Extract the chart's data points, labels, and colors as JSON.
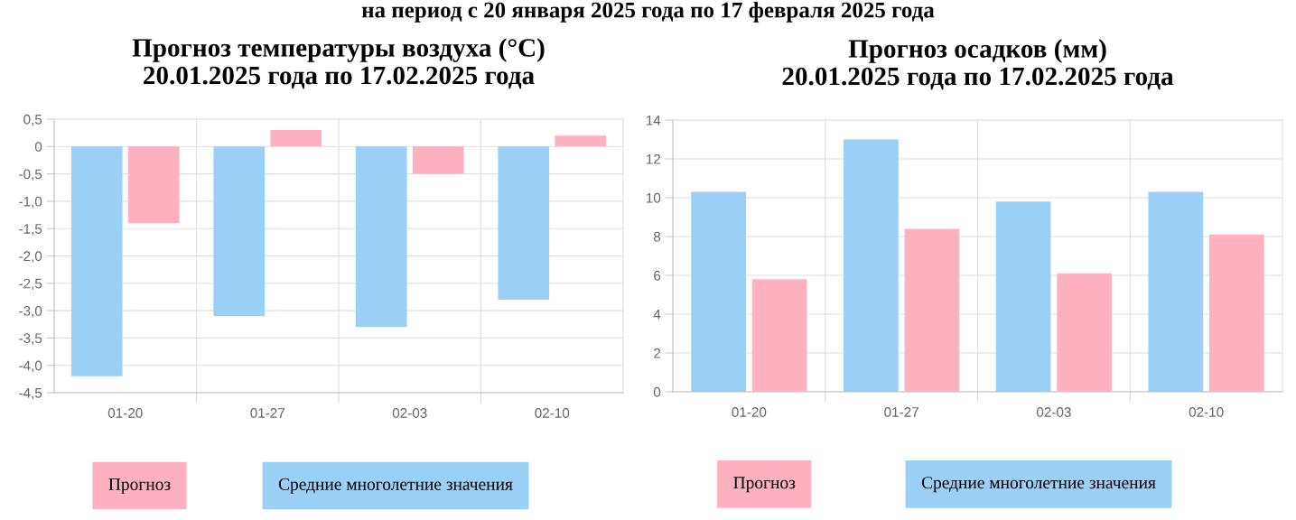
{
  "chart_data": [
    {
      "type": "bar",
      "title": "Прогноз температуры воздуха (°C)\n20.01.2025 года по 17.02.2025 года",
      "annotations": [
        "на период с 20 января 2025 года по 17 февраля 2025 года"
      ],
      "categories": [
        "01-20",
        "01-27",
        "02-03",
        "02-10"
      ],
      "series": [
        {
          "name": "Средние многолетние значения",
          "color": "#9ad0f5",
          "values": [
            -4.2,
            -3.1,
            -3.3,
            -2.8
          ]
        },
        {
          "name": "Прогноз",
          "color": "#ffb1c1",
          "values": [
            -1.4,
            0.3,
            -0.5,
            0.2
          ]
        }
      ],
      "ylim": [
        -4.5,
        0.5
      ],
      "yticks": [
        {
          "value": 0.5,
          "label": "0,5"
        },
        0,
        {
          "value": -0.5,
          "label": "-0,5"
        },
        {
          "value": -1.0,
          "label": "-1,0"
        },
        {
          "value": -1.5,
          "label": "-1,5"
        },
        {
          "value": -2.0,
          "label": "-2,0"
        },
        {
          "value": -2.5,
          "label": "-2,5"
        },
        {
          "value": -3.0,
          "label": "-3,0"
        },
        {
          "value": -3.5,
          "label": "-3,5"
        },
        {
          "value": -4.0,
          "label": "-4,0"
        },
        {
          "value": -4.5,
          "label": "-4,5"
        }
      ],
      "grid": true,
      "legend": "bottom"
    },
    {
      "type": "bar",
      "title": "Прогноз осадков (мм)\n20.01.2025 года по 17.02.2025 года",
      "categories": [
        "01-20",
        "01-27",
        "02-03",
        "02-10"
      ],
      "series": [
        {
          "name": "Средние многолетние значения",
          "color": "#9ad0f5",
          "values": [
            10.3,
            13.0,
            9.8,
            10.3
          ]
        },
        {
          "name": "Прогноз",
          "color": "#ffb1c1",
          "values": [
            5.8,
            8.4,
            6.1,
            8.1
          ]
        }
      ],
      "ylim": [
        0,
        14
      ],
      "yticks": [
        0,
        2,
        4,
        6,
        8,
        10,
        12,
        14
      ],
      "grid": true,
      "legend": "bottom"
    }
  ]
}
